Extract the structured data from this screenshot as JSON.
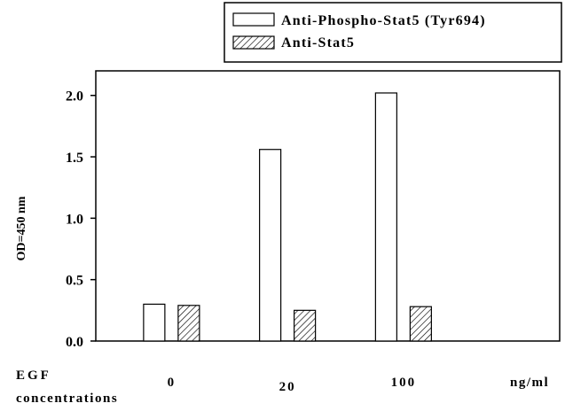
{
  "chart_data": {
    "type": "bar",
    "categories": [
      "0",
      "20",
      "100"
    ],
    "unit_label": "ng/ml",
    "category_axis_label_line1": "EGF",
    "category_axis_label_line2": "concentrations",
    "ylabel": "OD=450 nm",
    "ylim": [
      0,
      2.2
    ],
    "yticks": [
      "0.0",
      "0.5",
      "1.0",
      "1.5",
      "2.0"
    ],
    "ytick_values": [
      0,
      0.5,
      1.0,
      1.5,
      2.0
    ],
    "grid": false,
    "legend_position": "top-right",
    "series": [
      {
        "name": "Anti-Phospho-Stat5 (Tyr694)",
        "values": [
          0.3,
          1.56,
          2.02
        ],
        "fill": "white"
      },
      {
        "name": "Anti-Stat5",
        "values": [
          0.29,
          0.25,
          0.28
        ],
        "fill": "hatched"
      }
    ]
  },
  "colors": {
    "axis": "#000000",
    "bar_outline": "#000000",
    "background": "#ffffff"
  }
}
